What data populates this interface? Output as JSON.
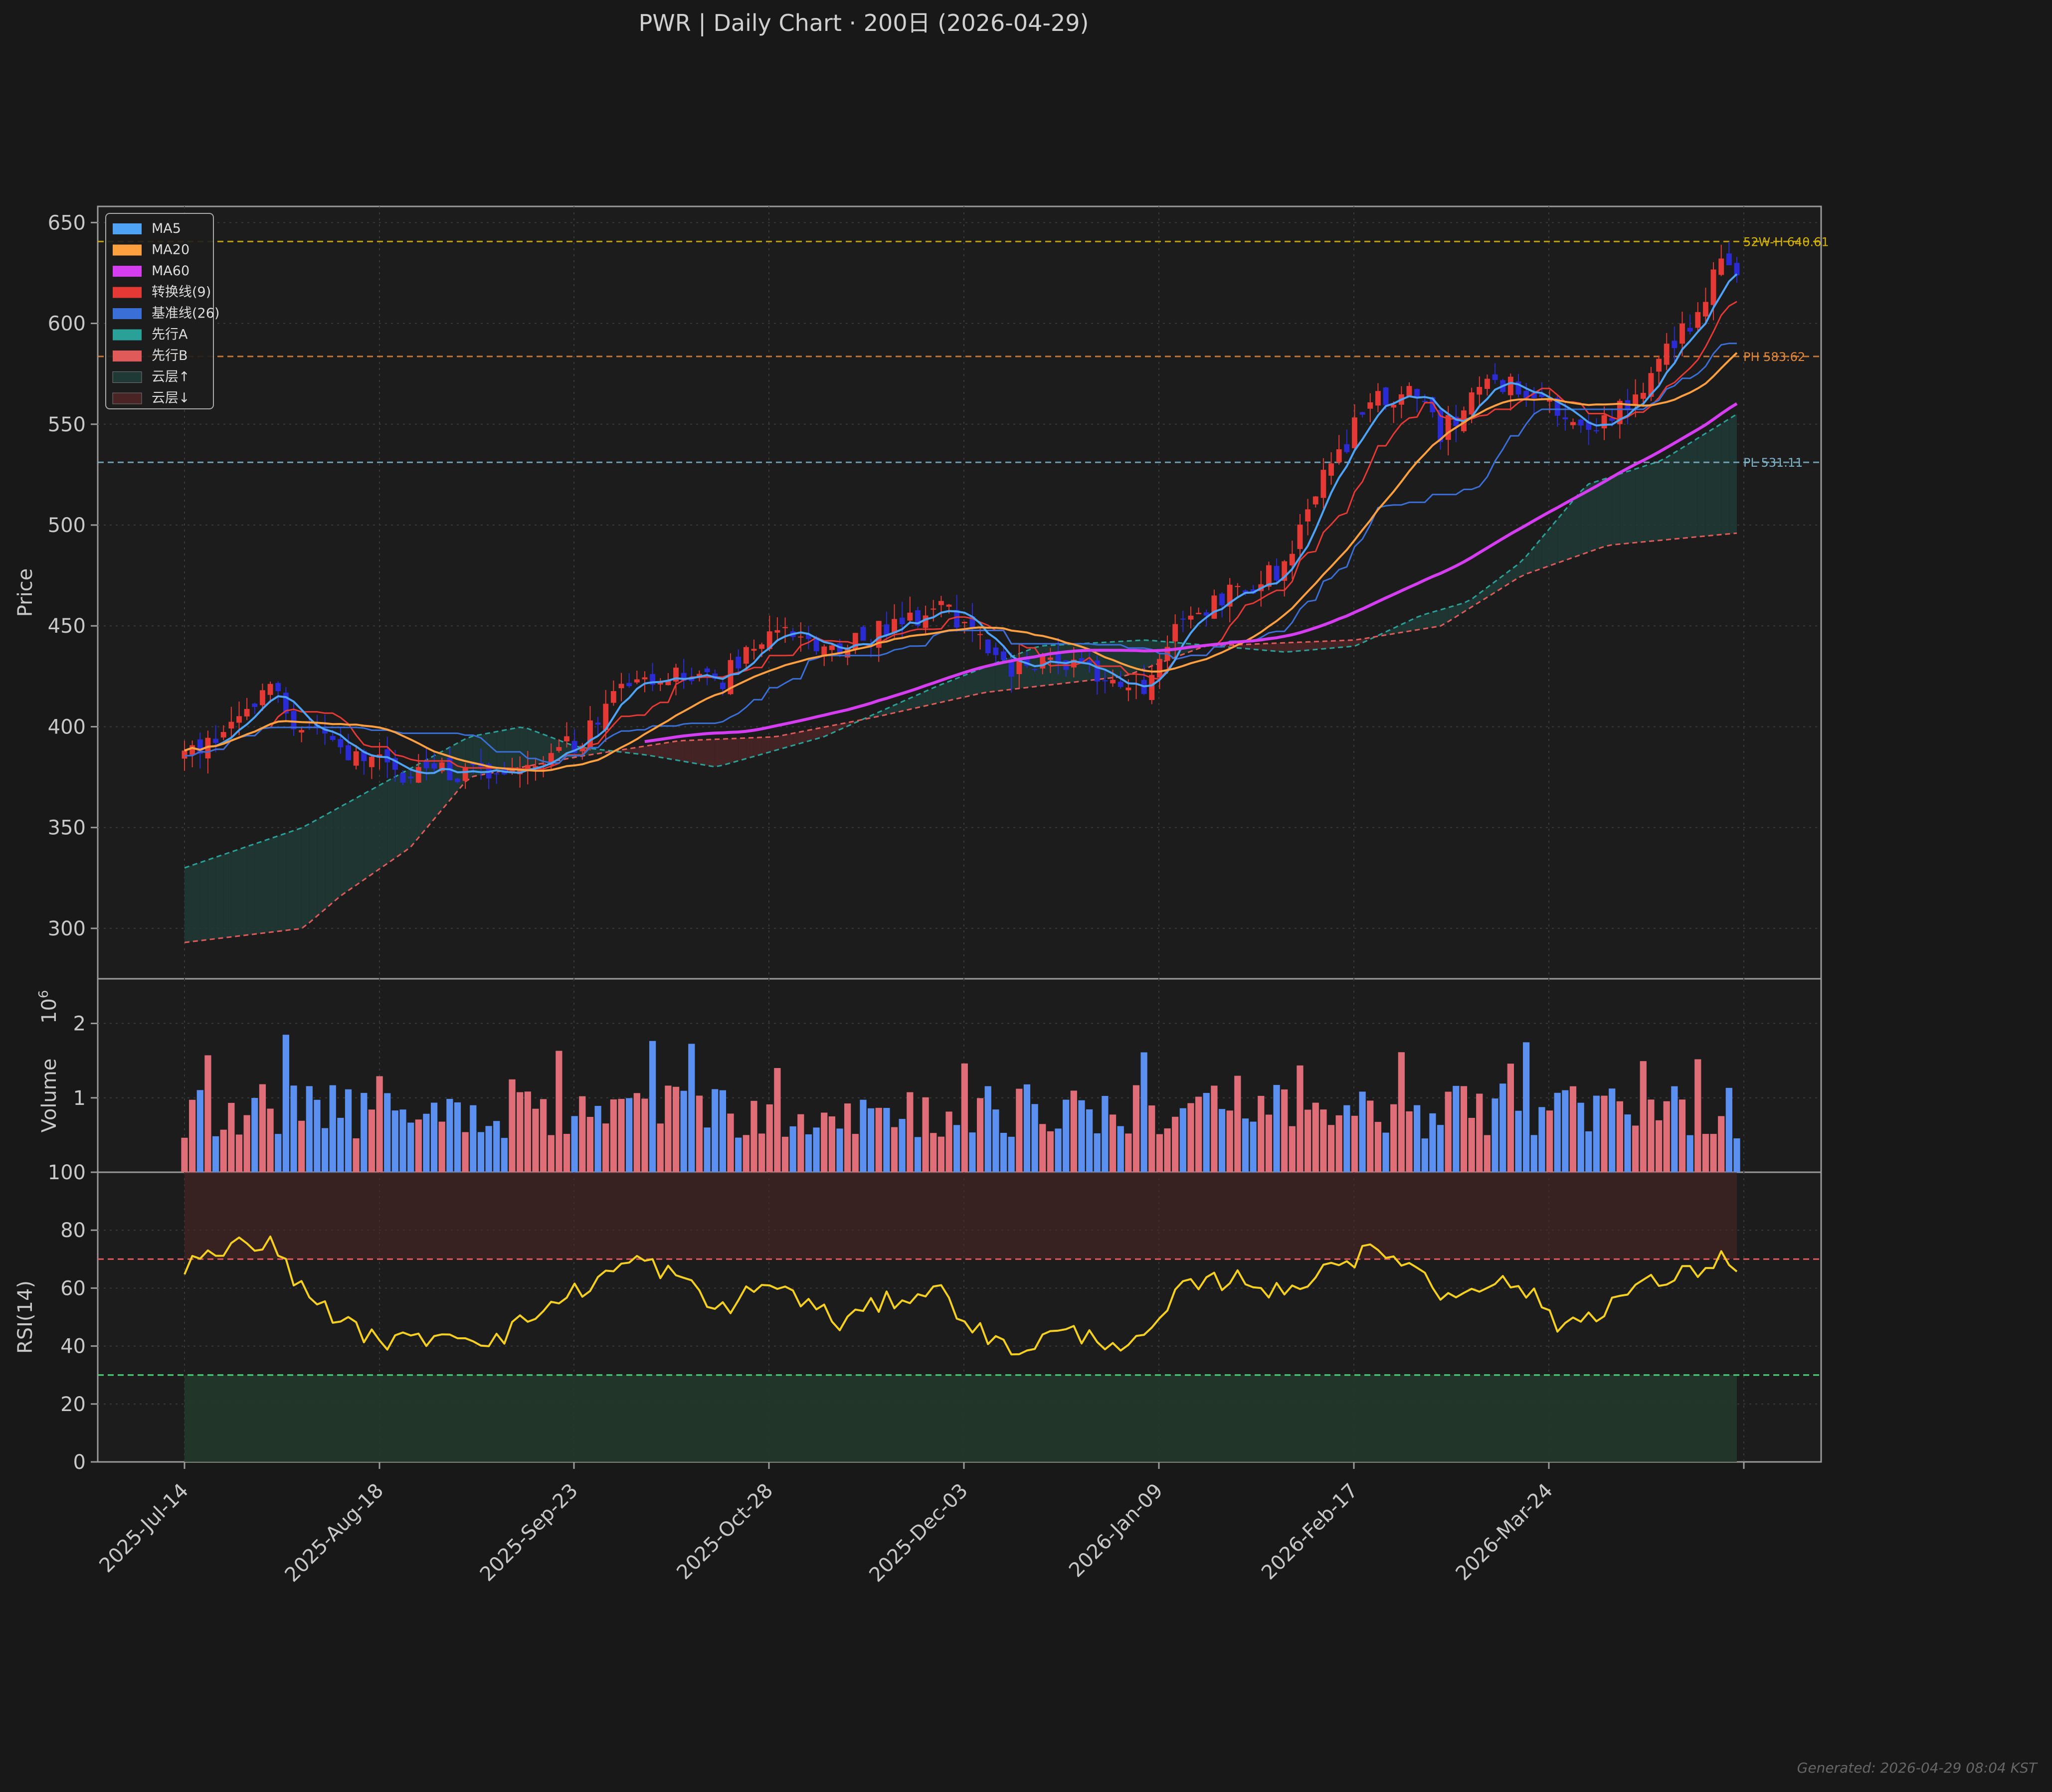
{
  "title": "PWR  |  Daily Chart · 200日  (2026-04-29)",
  "footer": "Generated: 2026-04-29 08:04 KST",
  "colors": {
    "background": "#181818",
    "panel": "#1c1c1c",
    "axis": "#9a9a9a",
    "text": "#c8c8c8",
    "grid": "#3a3a3a",
    "up": "#e53935",
    "down": "#2b2bd6",
    "ma5": "#4fa3f7",
    "ma20": "#ffa040",
    "ma60": "#d43df0",
    "tenkan": "#e53935",
    "kijun": "#3a6fd8",
    "spanA": "#2aa198",
    "spanB": "#e05a5a",
    "cloudUp": "#1f3a36",
    "cloudDown": "#4a2424",
    "high52": "#d4b400",
    "ph": "#e0873a",
    "pl": "#7fb3c8",
    "volUp": "#e06e78",
    "volDown": "#5b8ff0",
    "rsi": "#f5d020",
    "overbought": "#e05a5a",
    "oversold": "#4ad17a"
  },
  "chart_data": [
    {
      "type": "candlestick",
      "panel": "price",
      "ylabel": "Price",
      "ylim": [
        275,
        658
      ],
      "yticks": [
        300,
        350,
        400,
        450,
        500,
        550,
        600,
        650
      ],
      "grid": true,
      "x_start": "2025-07-14",
      "x_end": "2026-04-29",
      "xticks": [
        "2025-Jul-14",
        "2025-Aug-18",
        "2025-Sep-23",
        "2025-Oct-28",
        "2025-Dec-03",
        "2026-Jan-09",
        "2026-Feb-17",
        "2026-Mar-24"
      ],
      "bars": 200,
      "legend_position": "upper-left",
      "legend": [
        "MA5",
        "MA20",
        "MA60",
        "转换线(9)",
        "基准线(26)",
        "先行A",
        "先行B",
        "云层↑",
        "云层↓"
      ],
      "price_anchors": [
        [
          "2025-07-14",
          385
        ],
        [
          "2025-07-24",
          405
        ],
        [
          "2025-07-29",
          418
        ],
        [
          "2025-08-05",
          400
        ],
        [
          "2025-08-14",
          385
        ],
        [
          "2025-08-22",
          378
        ],
        [
          "2025-09-02",
          378
        ],
        [
          "2025-09-10",
          372
        ],
        [
          "2025-09-18",
          380
        ],
        [
          "2025-09-26",
          395
        ],
        [
          "2025-10-06",
          425
        ],
        [
          "2025-10-14",
          428
        ],
        [
          "2025-10-21",
          420
        ],
        [
          "2025-10-31",
          450
        ],
        [
          "2025-11-06",
          443
        ],
        [
          "2025-11-13",
          438
        ],
        [
          "2025-11-21",
          448
        ],
        [
          "2025-12-01",
          460
        ],
        [
          "2025-12-09",
          447
        ],
        [
          "2025-12-15",
          428
        ],
        [
          "2025-12-24",
          433
        ],
        [
          "2026-01-08",
          418
        ],
        [
          "2026-01-16",
          455
        ],
        [
          "2026-01-27",
          470
        ],
        [
          "2026-02-04",
          478
        ],
        [
          "2026-02-11",
          525
        ],
        [
          "2026-02-20",
          560
        ],
        [
          "2026-02-27",
          565
        ],
        [
          "2026-03-05",
          545
        ],
        [
          "2026-03-12",
          568
        ],
        [
          "2026-03-20",
          570
        ],
        [
          "2026-03-27",
          555
        ],
        [
          "2026-04-03",
          552
        ],
        [
          "2026-04-10",
          565
        ],
        [
          "2026-04-20",
          600
        ],
        [
          "2026-04-27",
          634
        ],
        [
          "2026-04-29",
          625
        ]
      ],
      "ma60_start": "2025-10-07",
      "reference_lines": [
        {
          "label": "52W-H 640.61",
          "value": 640.61
        },
        {
          "label": "PH 583.62",
          "value": 583.62
        },
        {
          "label": "PL 531.11",
          "value": 531.11
        }
      ],
      "cloud_anchors": {
        "span_a": [
          [
            "2025-07-14",
            330
          ],
          [
            "2025-08-05",
            350
          ],
          [
            "2025-08-20",
            372
          ],
          [
            "2025-09-05",
            395
          ],
          [
            "2025-09-15",
            400
          ],
          [
            "2025-09-25",
            390
          ],
          [
            "2025-10-08",
            386
          ],
          [
            "2025-10-21",
            380
          ],
          [
            "2025-11-10",
            395
          ],
          [
            "2025-12-01",
            420
          ],
          [
            "2025-12-20",
            440
          ],
          [
            "2026-01-09",
            443
          ],
          [
            "2026-02-04",
            437
          ],
          [
            "2026-02-17",
            440
          ],
          [
            "2026-03-01",
            455
          ],
          [
            "2026-03-10",
            462
          ],
          [
            "2026-03-20",
            482
          ],
          [
            "2026-04-01",
            520
          ],
          [
            "2026-04-15",
            532
          ],
          [
            "2026-04-29",
            555
          ]
        ],
        "span_b": [
          [
            "2025-07-14",
            293
          ],
          [
            "2025-08-05",
            300
          ],
          [
            "2025-08-12",
            316
          ],
          [
            "2025-08-25",
            340
          ],
          [
            "2025-09-05",
            375
          ],
          [
            "2025-09-25",
            385
          ],
          [
            "2025-10-14",
            393
          ],
          [
            "2025-11-01",
            395
          ],
          [
            "2025-11-20",
            405
          ],
          [
            "2025-12-10",
            417
          ],
          [
            "2026-01-05",
            425
          ],
          [
            "2026-01-20",
            440
          ],
          [
            "2026-02-17",
            443
          ],
          [
            "2026-03-05",
            450
          ],
          [
            "2026-03-20",
            475
          ],
          [
            "2026-04-05",
            490
          ],
          [
            "2026-04-29",
            496
          ]
        ]
      }
    },
    {
      "type": "bar",
      "panel": "volume",
      "ylabel": "Volume",
      "scale_label": "1e6",
      "ylim": [
        0,
        2.6
      ],
      "yticks": [
        1,
        2
      ],
      "value_range": [
        0.3,
        2.4
      ]
    },
    {
      "type": "line",
      "panel": "rsi",
      "ylabel": "RSI(14)",
      "ylim": [
        0,
        100
      ],
      "yticks": [
        0,
        20,
        40,
        60,
        80,
        100
      ],
      "overbought": 70,
      "oversold": 30,
      "rsi_anchors": [
        [
          "2025-07-14",
          67
        ],
        [
          "2025-07-24",
          75
        ],
        [
          "2025-07-29",
          77
        ],
        [
          "2025-08-05",
          60
        ],
        [
          "2025-08-14",
          46
        ],
        [
          "2025-08-22",
          41
        ],
        [
          "2025-09-02",
          45
        ],
        [
          "2025-09-10",
          42
        ],
        [
          "2025-09-18",
          52
        ],
        [
          "2025-09-26",
          60
        ],
        [
          "2025-10-06",
          70
        ],
        [
          "2025-10-14",
          64
        ],
        [
          "2025-10-21",
          52
        ],
        [
          "2025-10-31",
          62
        ],
        [
          "2025-11-06",
          56
        ],
        [
          "2025-11-13",
          48
        ],
        [
          "2025-11-21",
          55
        ],
        [
          "2025-12-01",
          60
        ],
        [
          "2025-12-09",
          45
        ],
        [
          "2025-12-15",
          38
        ],
        [
          "2025-12-24",
          45
        ],
        [
          "2026-01-08",
          40
        ],
        [
          "2026-01-16",
          60
        ],
        [
          "2026-01-27",
          64
        ],
        [
          "2026-02-04",
          57
        ],
        [
          "2026-02-11",
          68
        ],
        [
          "2026-02-20",
          72
        ],
        [
          "2026-02-27",
          70
        ],
        [
          "2026-03-05",
          57
        ],
        [
          "2026-03-12",
          62
        ],
        [
          "2026-03-20",
          61
        ],
        [
          "2026-03-27",
          47
        ],
        [
          "2026-04-03",
          52
        ],
        [
          "2026-04-10",
          60
        ],
        [
          "2026-04-20",
          65
        ],
        [
          "2026-04-27",
          71
        ],
        [
          "2026-04-29",
          68
        ]
      ]
    }
  ]
}
